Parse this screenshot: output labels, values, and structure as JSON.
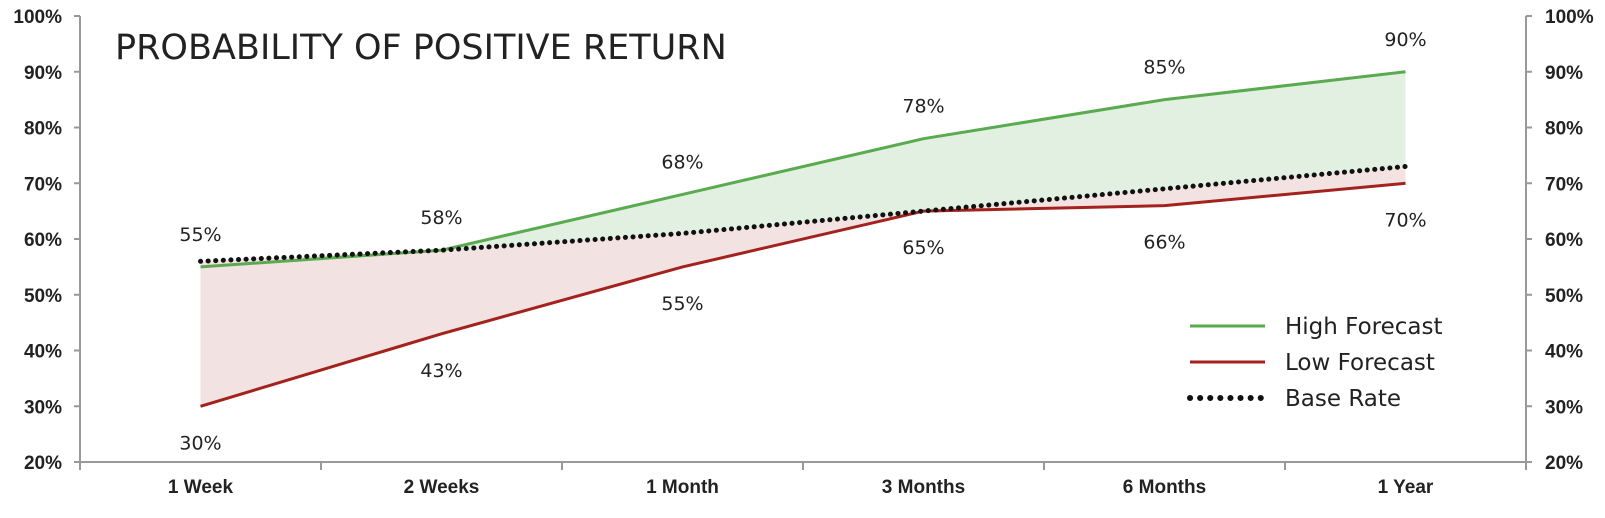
{
  "chart_data": {
    "type": "line",
    "title": "PROBABILITY OF POSITIVE RETURN",
    "categories": [
      "1 Week",
      "2 Weeks",
      "1 Month",
      "3 Months",
      "6 Months",
      "1 Year"
    ],
    "y_ticks": [
      "20%",
      "30%",
      "40%",
      "50%",
      "60%",
      "70%",
      "80%",
      "90%",
      "100%"
    ],
    "ylim": [
      20,
      100
    ],
    "y_unit": "%",
    "grid": false,
    "legend_position": "bottom-right",
    "series": [
      {
        "name": "High Forecast",
        "values": [
          55,
          58,
          68,
          78,
          85,
          90
        ],
        "labels": [
          "55%",
          "58%",
          "68%",
          "78%",
          "85%",
          "90%"
        ],
        "color": "#5aab4f",
        "style": "solid"
      },
      {
        "name": "Low Forecast",
        "values": [
          30,
          43,
          55,
          65,
          66,
          70
        ],
        "labels": [
          "30%",
          "43%",
          "55%",
          "65%",
          "66%",
          "70%"
        ],
        "color": "#a3221e",
        "style": "solid"
      },
      {
        "name": "Base Rate",
        "values": [
          56,
          58,
          61,
          65,
          69,
          73
        ],
        "color": "#111111",
        "style": "dotted"
      }
    ],
    "fill_colors": {
      "above_base": "#e2f0e1",
      "below_base": "#f3e2e2"
    }
  }
}
